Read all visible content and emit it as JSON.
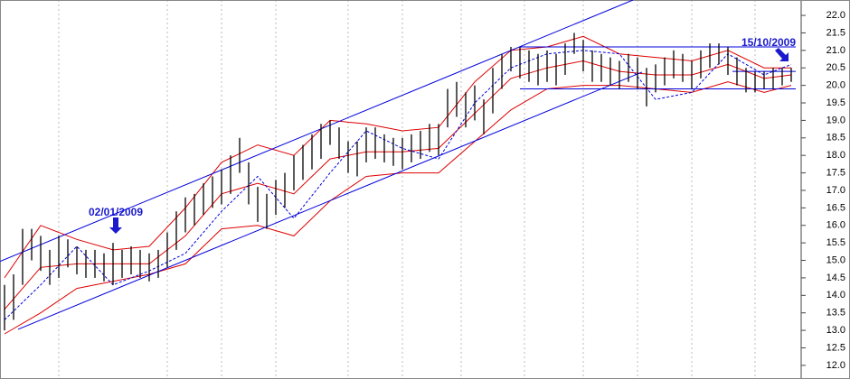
{
  "chart_data": {
    "type": "ohlc",
    "xlim": [
      -0.5,
      87.5
    ],
    "ylim": [
      11.61,
      22.44
    ],
    "yticks": [
      {
        "value": 12,
        "label": "12.0"
      },
      {
        "value": 12.5,
        "label": "12.5"
      },
      {
        "value": 13,
        "label": "13.0"
      },
      {
        "value": 13.5,
        "label": "13.5"
      },
      {
        "value": 14,
        "label": "14.0"
      },
      {
        "value": 14.5,
        "label": "14.5"
      },
      {
        "value": 15,
        "label": "15.0"
      },
      {
        "value": 15.5,
        "label": "15.5"
      },
      {
        "value": 16,
        "label": "16.0"
      },
      {
        "value": 16.5,
        "label": "16.5"
      },
      {
        "value": 17,
        "label": "17.0"
      },
      {
        "value": 17.5,
        "label": "17.5"
      },
      {
        "value": 18,
        "label": "18.0"
      },
      {
        "value": 18.5,
        "label": "18.5"
      },
      {
        "value": 19,
        "label": "19.0"
      },
      {
        "value": 19.5,
        "label": "19.5"
      },
      {
        "value": 20,
        "label": "20.0"
      },
      {
        "value": 20.5,
        "label": "20.5"
      },
      {
        "value": 21,
        "label": "21.0"
      },
      {
        "value": 21.5,
        "label": "21.5"
      },
      {
        "value": 22,
        "label": "22.0"
      }
    ],
    "bar_color": "#000000",
    "high": [
      14.3,
      14.6,
      15.9,
      15.9,
      15.7,
      15.3,
      15.7,
      15.6,
      15.4,
      15.3,
      15.3,
      15.2,
      15.5,
      15.3,
      15.4,
      15.3,
      15.2,
      15.3,
      15.8,
      16.4,
      16.8,
      16.9,
      17.2,
      17.4,
      17.6,
      18.0,
      18.5,
      17.8,
      17.1,
      16.9,
      17.3,
      17.5,
      18.0,
      18.3,
      18.6,
      18.9,
      19.0,
      18.8,
      18.4,
      18.4,
      18.8,
      18.8,
      18.6,
      18.5,
      18.5,
      18.6,
      18.7,
      18.9,
      18.9,
      19.9,
      20.1,
      19.8,
      20.0,
      19.6,
      20.5,
      20.9,
      21.1,
      21.1,
      21.0,
      20.9,
      21.0,
      20.9,
      21.2,
      21.5,
      21.3,
      21.0,
      20.9,
      20.8,
      20.7,
      20.9,
      20.8,
      20.5,
      20.6,
      20.8,
      21.0,
      20.9,
      20.7,
      21.0,
      21.2,
      21.2,
      21.1,
      20.8,
      20.5,
      20.4,
      20.4,
      20.5,
      20.5,
      20.5
    ],
    "low": [
      13.0,
      13.3,
      14.3,
      15.0,
      14.7,
      14.3,
      14.5,
      14.8,
      14.6,
      14.5,
      14.5,
      14.4,
      14.3,
      14.5,
      14.6,
      14.5,
      14.4,
      14.5,
      14.8,
      15.3,
      15.8,
      16.0,
      16.3,
      16.5,
      16.6,
      16.9,
      17.5,
      16.6,
      16.1,
      15.9,
      16.3,
      16.5,
      17.0,
      17.3,
      17.6,
      17.9,
      18.3,
      17.9,
      17.5,
      17.4,
      17.8,
      17.9,
      17.8,
      17.7,
      17.6,
      17.8,
      17.9,
      18.1,
      18.0,
      18.8,
      19.1,
      18.8,
      19.0,
      18.6,
      19.2,
      19.9,
      20.4,
      20.2,
      20.1,
      20.0,
      20.1,
      20.0,
      20.3,
      20.9,
      20.4,
      20.1,
      20.1,
      20.0,
      19.9,
      20.1,
      19.9,
      19.4,
      19.8,
      20.0,
      20.2,
      20.1,
      19.9,
      20.2,
      20.5,
      20.6,
      20.3,
      20.0,
      19.8,
      19.8,
      19.9,
      19.9,
      20.0,
      20.1
    ],
    "series": [
      {
        "color": "#dd0000",
        "dash": false,
        "x": [
          0,
          4,
          8,
          12,
          16,
          20,
          24,
          28,
          32,
          36,
          40,
          44,
          48,
          52,
          56,
          60,
          64,
          68,
          72,
          76,
          80,
          84,
          87
        ],
        "values": [
          14.5,
          16.0,
          15.6,
          15.3,
          15.4,
          16.5,
          17.8,
          18.3,
          18.0,
          19.0,
          18.9,
          18.7,
          18.8,
          20.1,
          21.0,
          21.1,
          21.4,
          20.9,
          20.8,
          20.7,
          21.0,
          20.5,
          20.5
        ]
      },
      {
        "color": "#dd0000",
        "dash": false,
        "x": [
          0,
          4,
          8,
          12,
          16,
          20,
          24,
          28,
          32,
          36,
          40,
          44,
          48,
          52,
          56,
          60,
          64,
          68,
          72,
          76,
          80,
          84,
          87
        ],
        "values": [
          13.6,
          14.8,
          14.9,
          14.9,
          14.9,
          15.7,
          16.9,
          17.2,
          16.9,
          17.9,
          18.1,
          18.1,
          18.2,
          19.2,
          20.2,
          20.5,
          20.7,
          20.4,
          20.3,
          20.3,
          20.6,
          20.2,
          20.3
        ]
      },
      {
        "color": "#dd0000",
        "dash": false,
        "x": [
          0,
          4,
          8,
          12,
          16,
          20,
          24,
          28,
          32,
          36,
          40,
          44,
          48,
          52,
          56,
          60,
          64,
          68,
          72,
          76,
          80,
          84,
          87
        ],
        "values": [
          12.9,
          13.5,
          14.2,
          14.4,
          14.6,
          14.9,
          15.9,
          16.0,
          15.7,
          16.7,
          17.4,
          17.5,
          17.5,
          18.4,
          19.3,
          19.9,
          20.0,
          20.0,
          19.9,
          19.8,
          20.1,
          19.8,
          20.0
        ]
      },
      {
        "color": "#0000dd",
        "dash": true,
        "x": [
          0,
          4,
          8,
          12,
          16,
          20,
          24,
          28,
          32,
          36,
          40,
          44,
          48,
          52,
          56,
          60,
          64,
          68,
          72,
          76,
          80,
          84,
          87
        ],
        "values": [
          13.3,
          14.3,
          15.4,
          14.3,
          14.7,
          15.2,
          16.4,
          17.4,
          16.2,
          17.5,
          18.7,
          18.2,
          17.9,
          19.5,
          20.5,
          20.9,
          21.0,
          20.9,
          19.6,
          19.8,
          20.9,
          20.3,
          20.6
        ]
      },
      {
        "color": "#0000dd",
        "dash": false,
        "x": [
          -0.5,
          69.5
        ],
        "values": [
          14.97,
          22.44
        ]
      },
      {
        "color": "#0000dd",
        "dash": false,
        "x": [
          1.5,
          70.5
        ],
        "values": [
          13.03,
          20.38
        ]
      },
      {
        "color": "#0000dd",
        "dash": false,
        "x": [
          57,
          87.5
        ],
        "values": [
          21.1,
          21.1
        ]
      },
      {
        "color": "#0000dd",
        "dash": false,
        "x": [
          57,
          87.5
        ],
        "values": [
          19.9,
          19.9
        ]
      },
      {
        "color": "#0000dd",
        "dash": false,
        "x": [
          80.5,
          87.5
        ],
        "values": [
          20.4,
          20.4
        ]
      }
    ],
    "annotations": [
      "02/01/2009",
      "15/10/2009"
    ]
  }
}
